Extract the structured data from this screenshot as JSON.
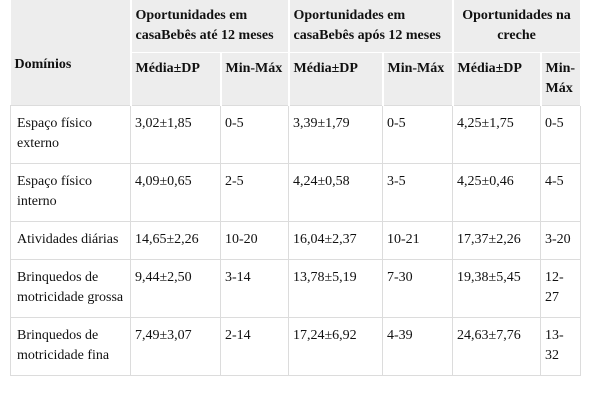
{
  "table": {
    "corner": "Domínios",
    "groups": [
      "Oportunidades em casaBebês até 12 meses",
      "Oportunidades em casaBebês após 12 meses",
      "Oportunidades na creche"
    ],
    "subheaders": [
      "Média±DP",
      "Min-Máx",
      "Média±DP",
      "Min-Máx",
      "Média±DP",
      "Min-Máx"
    ],
    "rows": [
      [
        "Espaço físico externo",
        "3,02±1,85",
        "0-5",
        "3,39±1,79",
        "0-5",
        "4,25±1,75",
        "0-5"
      ],
      [
        "Espaço físico interno",
        "4,09±0,65",
        "2-5",
        "4,24±0,58",
        "3-5",
        "4,25±0,46",
        "4-5"
      ],
      [
        "Atividades diárias",
        "14,65±2,26",
        "10-20",
        "16,04±2,37",
        "10-21",
        "17,37±2,26",
        "3-20"
      ],
      [
        "Brinquedos de motricidade grossa",
        "9,44±2,50",
        "3-14",
        "13,78±5,19",
        "7-30",
        "19,38±5,45",
        "12-27"
      ],
      [
        "Brinquedos de motricidade fina",
        "7,49±3,07",
        "2-14",
        "17,24±6,92",
        "4-39",
        "24,63±7,76",
        "13-32"
      ]
    ]
  }
}
